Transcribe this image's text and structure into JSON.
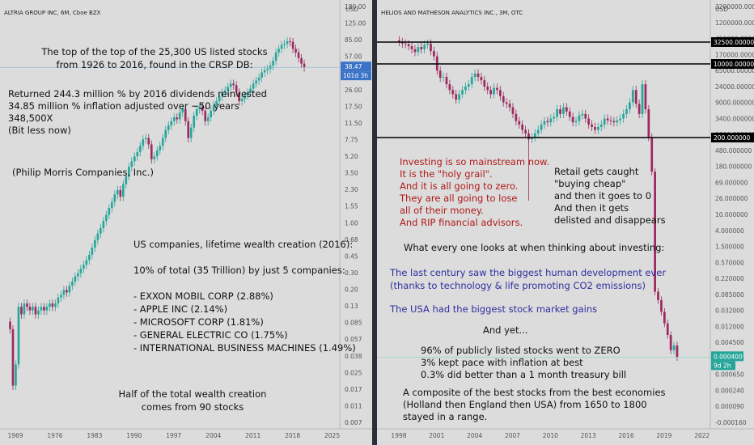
{
  "left": {
    "title": "ALTRIA GROUP INC, 6M, Cboe BZX",
    "currency": "USD",
    "last_price_label": "38.47",
    "countdown_label": "101d 3h",
    "y_ticks": [
      "180.00",
      "125.00",
      "85.00",
      "57.00",
      "38.00",
      "26.00",
      "17.50",
      "11.50",
      "7.75",
      "5.20",
      "3.50",
      "2.30",
      "1.55",
      "1.00",
      "0.68",
      "0.45",
      "0.30",
      "0.20",
      "0.13",
      "0.085",
      "0.057",
      "0.038",
      "0.025",
      "0.017",
      "0.011",
      "0.007"
    ],
    "x_ticks": [
      "1969",
      "1976",
      "1983",
      "1990",
      "1997",
      "2004",
      "2011",
      "2018",
      "2025"
    ]
  },
  "right": {
    "title": "HELIOS AND MATHESON ANALYTICS INC., 3M, OTC",
    "currency": "USD",
    "last_price_label": "0.000400",
    "countdown_label": "9d 2h",
    "y_ticks": [
      "3200000.0000",
      "1200000.0000",
      "450000.000000",
      "170000.000000",
      "65000.000000",
      "24000.000000",
      "9000.000000",
      "3400.000000",
      "1300.000000",
      "480.000000",
      "180.000000",
      "69.000000",
      "26.000000",
      "10.000000",
      "4.000000",
      "1.500000",
      "0.570000",
      "0.220000",
      "0.085000",
      "0.032000",
      "0.012000",
      "0.004500",
      "0.001700",
      "0.000650",
      "0.000240",
      "0.000090",
      "-0.000160"
    ],
    "x_ticks": [
      "1998",
      "2001",
      "2004",
      "2007",
      "2010",
      "2013",
      "2016",
      "2019",
      "2022"
    ],
    "horizontal_levels": [
      {
        "value": 32500,
        "label": "32500.000000"
      },
      {
        "value": 10000,
        "label": "10000.000000"
      },
      {
        "value": 200,
        "label": "200.000000"
      }
    ]
  },
  "annotations": {
    "left_header": [
      "The top of the top of the 25,300 US listed stocks",
      "from 1926 to 2016, found in the CRSP DB:"
    ],
    "left_returns": [
      "Returned 244.3 million % by 2016 dividends reinvested",
      "34.85 million % inflation adjusted over ~50 years",
      "348,500X",
      "(Bit less now)"
    ],
    "left_company": "(Philip Morris Companies, Inc.)",
    "left_wealth": [
      "US companies, lifetime wealth creation (2016):",
      "",
      "10% of total (35 Trillion) by just 5 companies:",
      "",
      "- EXXON MOBIL CORP (2.88%)",
      "- APPLE INC (2.14%)",
      "- MICROSOFT CORP (1.81%)",
      "-  GENERAL ELECTRIC CO (1.75%)",
      "- INTERNATIONAL BUSINESS MACHINES (1.49%)"
    ],
    "left_half": [
      "Half of the total wealth creation",
      "comes from 90 stocks"
    ],
    "right_red": [
      "Investing is so mainstream now.",
      "It is the \"holy grail\".",
      "And it is all going to zero.",
      "They are all going to lose",
      "all of their money.",
      "And RIP financial advisors."
    ],
    "right_retail": [
      "Retail gets caught",
      "\"buying cheap\"",
      "and then it goes to 0",
      "And then it gets",
      "delisted and disappears"
    ],
    "right_what": "What every one looks at when thinking about investing:",
    "right_blue1": [
      "The last century saw the biggest human development ever",
      "(thanks to technology & life promoting CO2  emissions)"
    ],
    "right_blue2": "The USA had the biggest stock market gains",
    "right_yet": "And yet...",
    "right_stats": [
      "96% of publicly listed stocks went to ZERO",
      "3% kept pace with inflation at best",
      "0.3% did better than a 1 month treasury bill"
    ],
    "right_composite": [
      "A composite of the best stocks from the best economies",
      "(Holland then England then USA) from 1650 to 1800",
      "stayed in a range."
    ]
  },
  "chart_data": [
    {
      "type": "candlestick",
      "title": "ALTRIA GROUP INC, 6M, Cboe BZX",
      "scale": "log",
      "ylim": [
        0.007,
        180
      ],
      "xlim": [
        1966.5,
        2026
      ],
      "up_color": "#26a69a",
      "down_color": "#9c2a5e",
      "points": [
        {
          "t": 1968,
          "v": 0.07
        },
        {
          "t": 1968.5,
          "v": 0.018
        },
        {
          "t": 1969,
          "v": 0.03
        },
        {
          "t": 1969.5,
          "v": 0.12
        },
        {
          "t": 1970,
          "v": 0.1
        },
        {
          "t": 1970.5,
          "v": 0.13
        },
        {
          "t": 1971,
          "v": 0.12
        },
        {
          "t": 1971.5,
          "v": 0.11
        },
        {
          "t": 1972,
          "v": 0.12
        },
        {
          "t": 1972.5,
          "v": 0.1
        },
        {
          "t": 1973,
          "v": 0.11
        },
        {
          "t": 1973.5,
          "v": 0.12
        },
        {
          "t": 1974,
          "v": 0.11
        },
        {
          "t": 1974.5,
          "v": 0.12
        },
        {
          "t": 1975,
          "v": 0.13
        },
        {
          "t": 1975.5,
          "v": 0.12
        },
        {
          "t": 1976,
          "v": 0.13
        },
        {
          "t": 1976.5,
          "v": 0.15
        },
        {
          "t": 1977,
          "v": 0.16
        },
        {
          "t": 1977.5,
          "v": 0.18
        },
        {
          "t": 1978,
          "v": 0.17
        },
        {
          "t": 1978.5,
          "v": 0.2
        },
        {
          "t": 1979,
          "v": 0.22
        },
        {
          "t": 1979.5,
          "v": 0.25
        },
        {
          "t": 1980,
          "v": 0.27
        },
        {
          "t": 1980.5,
          "v": 0.3
        },
        {
          "t": 1981,
          "v": 0.33
        },
        {
          "t": 1981.5,
          "v": 0.37
        },
        {
          "t": 1982,
          "v": 0.42
        },
        {
          "t": 1982.5,
          "v": 0.5
        },
        {
          "t": 1983,
          "v": 0.6
        },
        {
          "t": 1983.5,
          "v": 0.7
        },
        {
          "t": 1984,
          "v": 0.8
        },
        {
          "t": 1984.5,
          "v": 0.95
        },
        {
          "t": 1985,
          "v": 1.1
        },
        {
          "t": 1985.5,
          "v": 1.3
        },
        {
          "t": 1986,
          "v": 1.5
        },
        {
          "t": 1986.5,
          "v": 1.8
        },
        {
          "t": 1987,
          "v": 2.0
        },
        {
          "t": 1987.5,
          "v": 1.7
        },
        {
          "t": 1988,
          "v": 2.3
        },
        {
          "t": 1988.5,
          "v": 2.8
        },
        {
          "t": 1989,
          "v": 3.5
        },
        {
          "t": 1989.5,
          "v": 4.0
        },
        {
          "t": 1990,
          "v": 4.5
        },
        {
          "t": 1990.5,
          "v": 5.0
        },
        {
          "t": 1991,
          "v": 5.8
        },
        {
          "t": 1991.5,
          "v": 6.8
        },
        {
          "t": 1992,
          "v": 7.0
        },
        {
          "t": 1992.5,
          "v": 6.0
        },
        {
          "t": 1993,
          "v": 4.2
        },
        {
          "t": 1993.5,
          "v": 4.5
        },
        {
          "t": 1994,
          "v": 5.2
        },
        {
          "t": 1994.5,
          "v": 5.8
        },
        {
          "t": 1995,
          "v": 7.0
        },
        {
          "t": 1995.5,
          "v": 8.5
        },
        {
          "t": 1996,
          "v": 9.5
        },
        {
          "t": 1996.5,
          "v": 10.5
        },
        {
          "t": 1997,
          "v": 11.5
        },
        {
          "t": 1997.5,
          "v": 11.0
        },
        {
          "t": 1998,
          "v": 13.0
        },
        {
          "t": 1998.5,
          "v": 14.0
        },
        {
          "t": 1999,
          "v": 10.5
        },
        {
          "t": 1999.5,
          "v": 7.0
        },
        {
          "t": 2000,
          "v": 9.0
        },
        {
          "t": 2000.5,
          "v": 12.0
        },
        {
          "t": 2001,
          "v": 14.0
        },
        {
          "t": 2001.5,
          "v": 15.0
        },
        {
          "t": 2002,
          "v": 13.5
        },
        {
          "t": 2002.5,
          "v": 10.5
        },
        {
          "t": 2003,
          "v": 11.5
        },
        {
          "t": 2003.5,
          "v": 13.5
        },
        {
          "t": 2004,
          "v": 15.5
        },
        {
          "t": 2004.5,
          "v": 17.0
        },
        {
          "t": 2005,
          "v": 19.0
        },
        {
          "t": 2005.5,
          "v": 21.0
        },
        {
          "t": 2006,
          "v": 22.0
        },
        {
          "t": 2006.5,
          "v": 24.0
        },
        {
          "t": 2007,
          "v": 26.0
        },
        {
          "t": 2007.5,
          "v": 25.0
        },
        {
          "t": 2008,
          "v": 21.0
        },
        {
          "t": 2008.5,
          "v": 17.0
        },
        {
          "t": 2009,
          "v": 18.0
        },
        {
          "t": 2009.5,
          "v": 19.5
        },
        {
          "t": 2010,
          "v": 21.0
        },
        {
          "t": 2010.5,
          "v": 23.0
        },
        {
          "t": 2011,
          "v": 26.0
        },
        {
          "t": 2011.5,
          "v": 28.0
        },
        {
          "t": 2012,
          "v": 30.0
        },
        {
          "t": 2012.5,
          "v": 34.0
        },
        {
          "t": 2013,
          "v": 36.0
        },
        {
          "t": 2013.5,
          "v": 37.0
        },
        {
          "t": 2014,
          "v": 40.0
        },
        {
          "t": 2014.5,
          "v": 45.0
        },
        {
          "t": 2015,
          "v": 55.0
        },
        {
          "t": 2015.5,
          "v": 60.0
        },
        {
          "t": 2016,
          "v": 66.0
        },
        {
          "t": 2016.5,
          "v": 68.0
        },
        {
          "t": 2017,
          "v": 72.0
        },
        {
          "t": 2017.5,
          "v": 71.0
        },
        {
          "t": 2018,
          "v": 60.0
        },
        {
          "t": 2018.5,
          "v": 55.0
        },
        {
          "t": 2019,
          "v": 48.0
        },
        {
          "t": 2019.5,
          "v": 42.0
        },
        {
          "t": 2020,
          "v": 38.47
        }
      ]
    },
    {
      "type": "candlestick",
      "title": "HELIOS AND MATHESON ANALYTICS INC., 3M, OTC",
      "scale": "custom",
      "xlim": [
        1996.5,
        2022.5
      ],
      "up_color": "#26a69a",
      "down_color": "#9c2a5e",
      "points": [
        {
          "t": 1998,
          "v": 32500
        },
        {
          "t": 1998.25,
          "v": 30000
        },
        {
          "t": 1998.5,
          "v": 29000
        },
        {
          "t": 1998.75,
          "v": 26000
        },
        {
          "t": 1999,
          "v": 22000
        },
        {
          "t": 1999.25,
          "v": 19000
        },
        {
          "t": 1999.5,
          "v": 25000
        },
        {
          "t": 1999.75,
          "v": 22000
        },
        {
          "t": 2000,
          "v": 28000
        },
        {
          "t": 2000.25,
          "v": 30000
        },
        {
          "t": 2000.5,
          "v": 20000
        },
        {
          "t": 2000.75,
          "v": 15000
        },
        {
          "t": 2001,
          "v": 7000
        },
        {
          "t": 2001.25,
          "v": 4800
        },
        {
          "t": 2001.5,
          "v": 5000
        },
        {
          "t": 2001.75,
          "v": 3400
        },
        {
          "t": 2002,
          "v": 2500
        },
        {
          "t": 2002.25,
          "v": 2000
        },
        {
          "t": 2002.5,
          "v": 1500
        },
        {
          "t": 2002.75,
          "v": 2000
        },
        {
          "t": 2003,
          "v": 2500
        },
        {
          "t": 2003.25,
          "v": 3000
        },
        {
          "t": 2003.5,
          "v": 3400
        },
        {
          "t": 2003.75,
          "v": 5000
        },
        {
          "t": 2004,
          "v": 6000
        },
        {
          "t": 2004.25,
          "v": 5000
        },
        {
          "t": 2004.5,
          "v": 4200
        },
        {
          "t": 2004.75,
          "v": 3000
        },
        {
          "t": 2005,
          "v": 2500
        },
        {
          "t": 2005.25,
          "v": 2000
        },
        {
          "t": 2005.5,
          "v": 2800
        },
        {
          "t": 2005.75,
          "v": 2500
        },
        {
          "t": 2006,
          "v": 1800
        },
        {
          "t": 2006.25,
          "v": 1300
        },
        {
          "t": 2006.5,
          "v": 1200
        },
        {
          "t": 2006.75,
          "v": 1000
        },
        {
          "t": 2007,
          "v": 700
        },
        {
          "t": 2007.25,
          "v": 480
        },
        {
          "t": 2007.5,
          "v": 400
        },
        {
          "t": 2007.75,
          "v": 300
        },
        {
          "t": 2008,
          "v": 250
        },
        {
          "t": 2008.25,
          "v": 180
        },
        {
          "t": 2008.5,
          "v": 200
        },
        {
          "t": 2008.75,
          "v": 250
        },
        {
          "t": 2009,
          "v": 300
        },
        {
          "t": 2009.25,
          "v": 400
        },
        {
          "t": 2009.5,
          "v": 480
        },
        {
          "t": 2009.75,
          "v": 450
        },
        {
          "t": 2010,
          "v": 550
        },
        {
          "t": 2010.25,
          "v": 600
        },
        {
          "t": 2010.5,
          "v": 900
        },
        {
          "t": 2010.75,
          "v": 700
        },
        {
          "t": 2011,
          "v": 1000
        },
        {
          "t": 2011.25,
          "v": 800
        },
        {
          "t": 2011.5,
          "v": 600
        },
        {
          "t": 2011.75,
          "v": 450
        },
        {
          "t": 2012,
          "v": 480
        },
        {
          "t": 2012.25,
          "v": 650
        },
        {
          "t": 2012.5,
          "v": 700
        },
        {
          "t": 2012.75,
          "v": 550
        },
        {
          "t": 2013,
          "v": 400
        },
        {
          "t": 2013.25,
          "v": 350
        },
        {
          "t": 2013.5,
          "v": 300
        },
        {
          "t": 2013.75,
          "v": 350
        },
        {
          "t": 2014,
          "v": 400
        },
        {
          "t": 2014.25,
          "v": 550
        },
        {
          "t": 2014.5,
          "v": 500
        },
        {
          "t": 2014.75,
          "v": 480
        },
        {
          "t": 2015,
          "v": 450
        },
        {
          "t": 2015.25,
          "v": 500
        },
        {
          "t": 2015.5,
          "v": 550
        },
        {
          "t": 2015.75,
          "v": 700
        },
        {
          "t": 2016,
          "v": 900
        },
        {
          "t": 2016.25,
          "v": 1300
        },
        {
          "t": 2016.5,
          "v": 2500
        },
        {
          "t": 2016.75,
          "v": 1200
        },
        {
          "t": 2017,
          "v": 700
        },
        {
          "t": 2017.25,
          "v": 3400
        },
        {
          "t": 2017.5,
          "v": 900
        },
        {
          "t": 2017.75,
          "v": 200
        },
        {
          "t": 2018,
          "v": 26
        },
        {
          "t": 2018.25,
          "v": 0.02
        },
        {
          "t": 2018.5,
          "v": 0.012
        },
        {
          "t": 2018.75,
          "v": 0.006
        },
        {
          "t": 2019,
          "v": 0.003
        },
        {
          "t": 2019.25,
          "v": 0.0015
        },
        {
          "t": 2019.5,
          "v": 0.0006
        },
        {
          "t": 2019.75,
          "v": 0.0008
        },
        {
          "t": 2020,
          "v": 0.0004
        }
      ]
    }
  ]
}
